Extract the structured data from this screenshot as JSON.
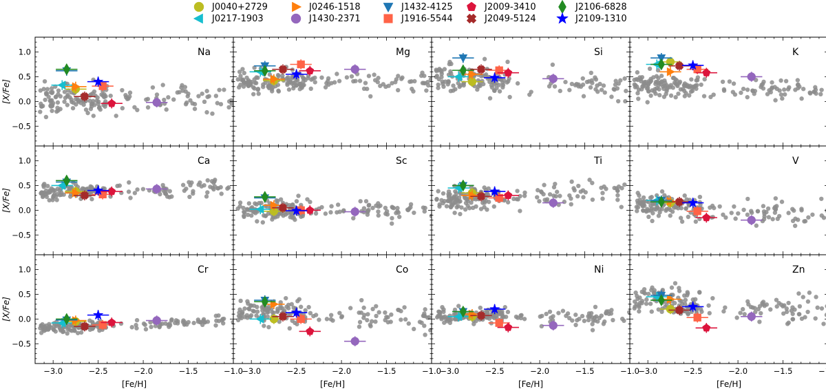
{
  "legend": [
    {
      "name": "J0040+2729",
      "color": "#bcbd22",
      "marker": "circle"
    },
    {
      "name": "J0217-1903",
      "color": "#17becf",
      "marker": "triangle-left"
    },
    {
      "name": "J0246-1518",
      "color": "#ff7f0e",
      "marker": "triangle-right"
    },
    {
      "name": "J1430-2371",
      "color": "#9467bd",
      "marker": "circle"
    },
    {
      "name": "J1432-4125",
      "color": "#1f77b4",
      "marker": "triangle-down"
    },
    {
      "name": "J1916-5544",
      "color": "#ff6347",
      "marker": "square"
    },
    {
      "name": "J2009-3410",
      "color": "#dc143c",
      "marker": "pentagon"
    },
    {
      "name": "J2049-5124",
      "color": "#a52a2a",
      "marker": "x"
    },
    {
      "name": "J2106-6828",
      "color": "#228b22",
      "marker": "diamond"
    },
    {
      "name": "J2109-1310",
      "color": "#0000ff",
      "marker": "star"
    }
  ],
  "chart_data": {
    "type": "scatter",
    "xlabel": "[Fe/H]",
    "ylabel": "[X/Fe]",
    "xlim": [
      -3.2,
      -1.0
    ],
    "ylim": [
      -0.9,
      1.3
    ],
    "xticks": [
      -3.0,
      -2.5,
      -2.0,
      -1.5,
      -1.0
    ],
    "xtick_labels": [
      "−3.0",
      "−2.5",
      "−2.0",
      "−1.5",
      "−1.0"
    ],
    "yticks": [
      -0.5,
      0.0,
      0.5,
      1.0
    ],
    "ytick_labels": [
      "−0.5",
      "0.0",
      "0.5",
      "1.0"
    ],
    "background_color": "#8c8c8c",
    "star_feh": [
      -2.75,
      -2.9,
      -2.75,
      -1.85,
      -2.85,
      -2.45,
      -2.35,
      -2.65,
      -2.85,
      -2.5
    ],
    "panels": [
      {
        "element": "Na",
        "center": 0.05,
        "trend": -0.02,
        "spread": 0.15,
        "stars": [
          0.25,
          0.33,
          0.3,
          -0.02,
          0.62,
          0.31,
          -0.04,
          0.1,
          0.65,
          0.4
        ]
      },
      {
        "element": "Mg",
        "center": 0.4,
        "trend": -0.03,
        "spread": 0.1,
        "stars": [
          0.42,
          0.6,
          0.45,
          0.65,
          0.72,
          0.75,
          0.62,
          0.65,
          0.62,
          0.55
        ]
      },
      {
        "element": "Si",
        "center": 0.45,
        "trend": -0.08,
        "spread": 0.15,
        "stars": [
          0.4,
          0.5,
          0.55,
          0.46,
          0.88,
          0.63,
          0.58,
          0.65,
          0.63,
          0.48
        ]
      },
      {
        "element": "K",
        "center": 0.3,
        "trend": -0.03,
        "spread": 0.12,
        "stars": [
          0.8,
          0.75,
          0.6,
          0.5,
          0.88,
          0.65,
          0.58,
          0.72,
          0.75,
          0.73
        ]
      },
      {
        "element": "Ca",
        "center": 0.38,
        "trend": 0.05,
        "spread": 0.07,
        "stars": [
          0.38,
          0.5,
          0.35,
          0.43,
          0.57,
          0.32,
          0.38,
          0.3,
          0.6,
          0.4
        ]
      },
      {
        "element": "Sc",
        "center": 0.0,
        "trend": -0.01,
        "spread": 0.1,
        "stars": [
          -0.02,
          0.02,
          0.1,
          -0.03,
          0.25,
          0.0,
          0.0,
          0.05,
          0.27,
          -0.01
        ]
      },
      {
        "element": "Ti",
        "center": 0.25,
        "trend": 0.1,
        "spread": 0.12,
        "stars": [
          0.35,
          0.45,
          0.3,
          0.15,
          0.5,
          0.25,
          0.3,
          0.28,
          0.5,
          0.38
        ]
      },
      {
        "element": "V",
        "center": 0.05,
        "trend": -0.1,
        "spread": 0.12,
        "stars": [
          0.15,
          0.2,
          0.18,
          -0.2,
          0.2,
          -0.02,
          -0.15,
          0.17,
          0.17,
          0.15
        ]
      },
      {
        "element": "Cr",
        "center": -0.15,
        "trend": 0.07,
        "spread": 0.05,
        "stars": [
          -0.05,
          -0.08,
          -0.03,
          -0.03,
          -0.02,
          -0.12,
          -0.07,
          -0.15,
          0.0,
          0.08
        ]
      },
      {
        "element": "Co",
        "center": 0.1,
        "trend": -0.08,
        "spread": 0.12,
        "stars": [
          0.0,
          0.0,
          0.3,
          -0.45,
          0.38,
          0.0,
          -0.25,
          0.05,
          0.35,
          0.13
        ]
      },
      {
        "element": "Ni",
        "center": 0.05,
        "trend": -0.01,
        "spread": 0.08,
        "stars": [
          0.05,
          0.05,
          0.1,
          -0.13,
          0.15,
          -0.08,
          -0.17,
          0.07,
          0.15,
          0.2
        ]
      },
      {
        "element": "Zn",
        "center": 0.32,
        "trend": -0.12,
        "spread": 0.15,
        "stars": [
          0.2,
          0.45,
          0.4,
          0.05,
          0.48,
          0.03,
          -0.18,
          0.18,
          0.38,
          0.25
        ]
      }
    ]
  }
}
